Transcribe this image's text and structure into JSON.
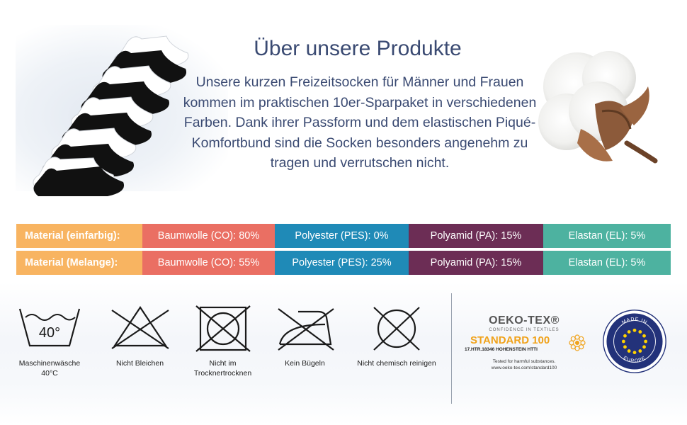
{
  "header": {
    "title": "Über unsere Produkte",
    "description": "Unsere kurzen Freizeitsocken für Männer und Frauen kommen im praktischen 10er-Sparpaket in verschiedenen Farben. Dank ihrer Passform und dem elastischen Piqué-Komfortbund sind die Socken besonders angenehm zu tragen und verrutschen nicht."
  },
  "material_table": {
    "colors": [
      "#f8b461",
      "#ea6f63",
      "#1f8ab7",
      "#6c2d55",
      "#4db2a0"
    ],
    "rows": [
      {
        "label": "Material (einfarbig):",
        "cells": [
          "Baumwolle (CO): 80%",
          "Polyester (PES): 0%",
          "Polyamid (PA): 15%",
          "Elastan (EL): 5%"
        ]
      },
      {
        "label": "Material (Melange):",
        "cells": [
          "Baumwolle (CO): 55%",
          "Polyester (PES): 25%",
          "Polyamid (PA): 15%",
          "Elastan (EL): 5%"
        ]
      }
    ]
  },
  "care": {
    "wash_temp": "40°",
    "items": [
      {
        "icon": "wash-40-icon",
        "label1": "Maschinenwäsche",
        "label2": "40°C"
      },
      {
        "icon": "no-bleach-icon",
        "label1": "Nicht Bleichen",
        "label2": ""
      },
      {
        "icon": "no-tumble-dry-icon",
        "label1": "Nicht im",
        "label2": "Trocknertrocknen"
      },
      {
        "icon": "no-iron-icon",
        "label1": "Kein Bügeln",
        "label2": ""
      },
      {
        "icon": "no-dry-clean-icon",
        "label1": "Nicht chemisch reinigen",
        "label2": ""
      }
    ]
  },
  "oeko_tex": {
    "name": "OEKO-TEX®",
    "sub": "CONFIDENCE IN TEXTILES",
    "standard": "STANDARD 100",
    "code": "17.HTR.18346 HOHENSTEIN HTTI",
    "note1": "Tested for harmful substances.",
    "note2": "www.oeko-tex.com/standard100"
  },
  "eu_badge": {
    "top": "MADE IN",
    "bottom": "EUROPE"
  }
}
